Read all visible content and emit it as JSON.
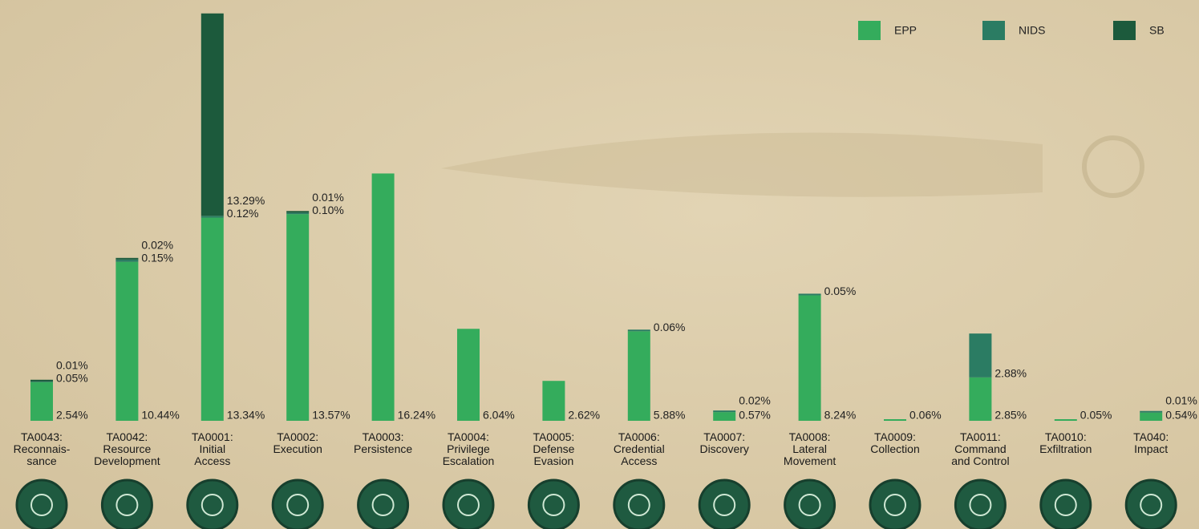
{
  "chart_data": {
    "type": "stacked_bar",
    "legend": "top-right",
    "categories": [
      "TA0043:\nReconnais-\nsance",
      "TA0042:\nResource\nDevelopment",
      "TA0001:\nInitial\nAccess",
      "TA0002:\nExecution",
      "TA0003:\nPersistence",
      "TA0004:\nPrivilege\nEscalation",
      "TA0005:\nDefense\nEvasion",
      "TA0006:\nCredential\nAccess",
      "TA0007:\nDiscovery",
      "TA0008:\nLateral\nMovement",
      "TA0009:\nCollection",
      "TA0011:\nCommand\nand Control",
      "TA0010:\nExfiltration",
      "TA040:\nImpact"
    ],
    "series": [
      {
        "name": "EPP",
        "color": "#34ac5c",
        "values": [
          2.54,
          10.44,
          13.34,
          13.57,
          16.24,
          6.04,
          2.62,
          5.88,
          0.57,
          8.24,
          0.06,
          2.85,
          0.05,
          0.54
        ],
        "value_labels": [
          "2.54%",
          "10.44%",
          "13.34%",
          "13.57%",
          "16.24%",
          "6.04%",
          "2.62%",
          "5.88%",
          "0.57%",
          "8.24%",
          "0.06%",
          "2.85%",
          "0.05%",
          "0.54%"
        ]
      },
      {
        "name": "NIDS",
        "color": "#2b7c63",
        "values": [
          0.05,
          0.15,
          0.12,
          0.1,
          null,
          null,
          null,
          0.06,
          0.02,
          0.05,
          null,
          2.88,
          null,
          0.01
        ],
        "value_labels": [
          "0.05%",
          "0.15%",
          "0.12%",
          "0.10%",
          null,
          null,
          null,
          "0.06%",
          "0.02%",
          "0.05%",
          null,
          "2.88%",
          null,
          "0.01%"
        ]
      },
      {
        "name": "SB",
        "color": "#1c5a3c",
        "values": [
          0.01,
          0.02,
          13.29,
          0.01,
          null,
          null,
          null,
          null,
          null,
          null,
          null,
          null,
          null,
          null
        ],
        "value_labels": [
          "0.01%",
          "0.02%",
          "13.29%",
          "0.01%",
          null,
          null,
          null,
          null,
          null,
          null,
          null,
          null,
          null,
          null
        ]
      }
    ]
  }
}
